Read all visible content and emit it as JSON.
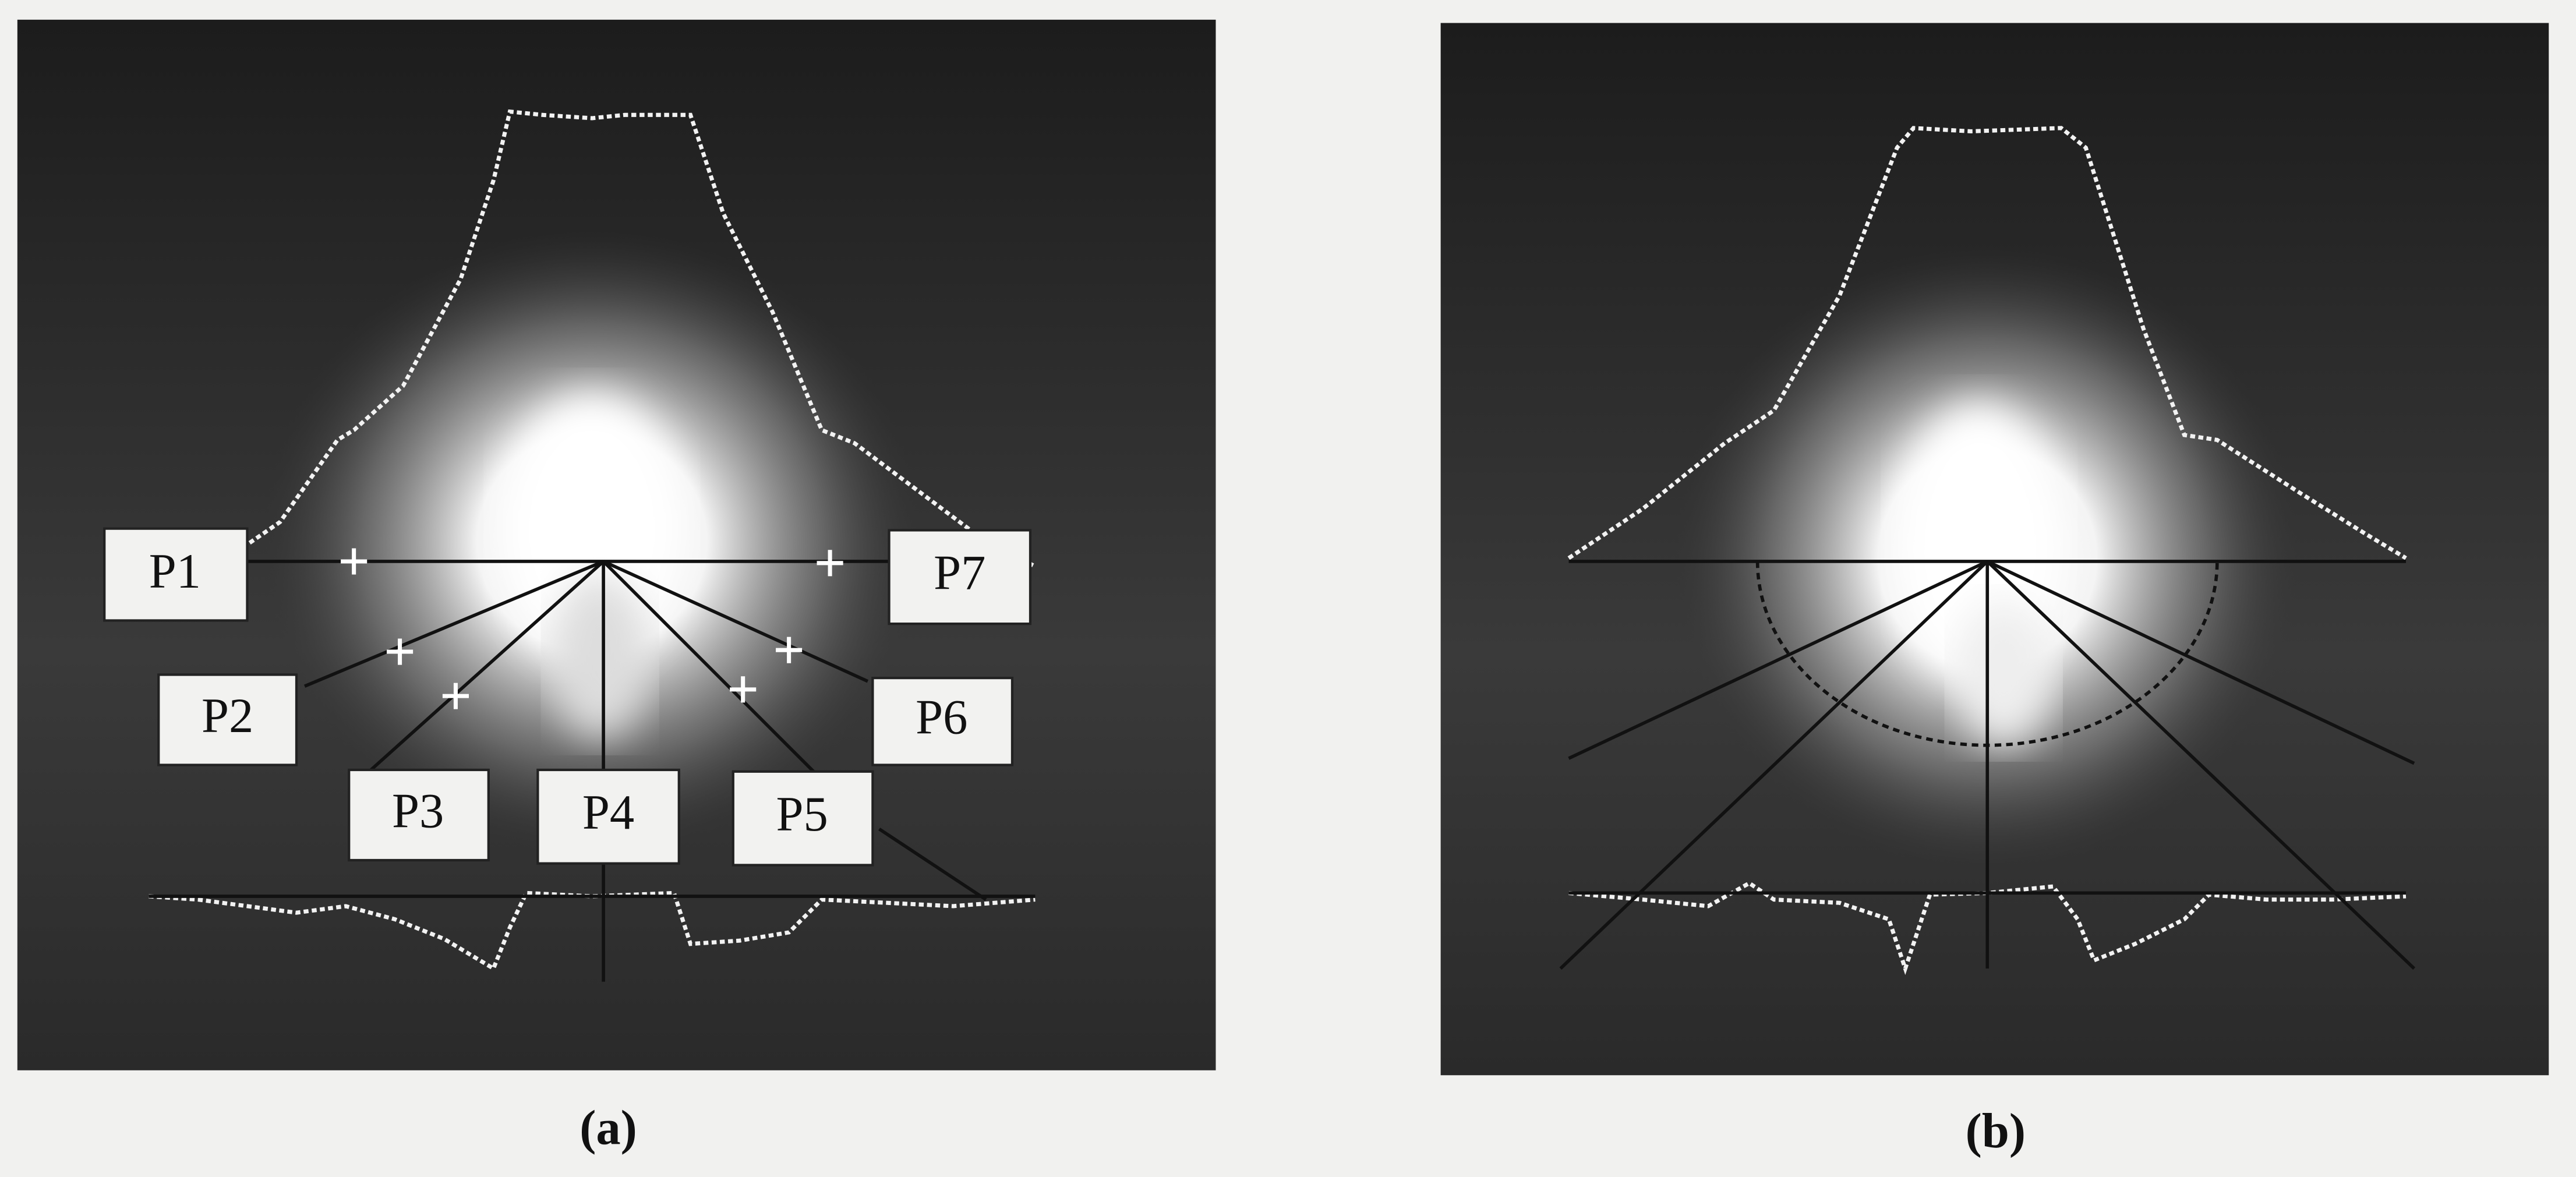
{
  "panels": [
    {
      "caption": "(a)",
      "labels": [
        "P1",
        "P2",
        "P3",
        "P4",
        "P5",
        "P6",
        "P7"
      ]
    },
    {
      "caption": "(b)"
    }
  ]
}
